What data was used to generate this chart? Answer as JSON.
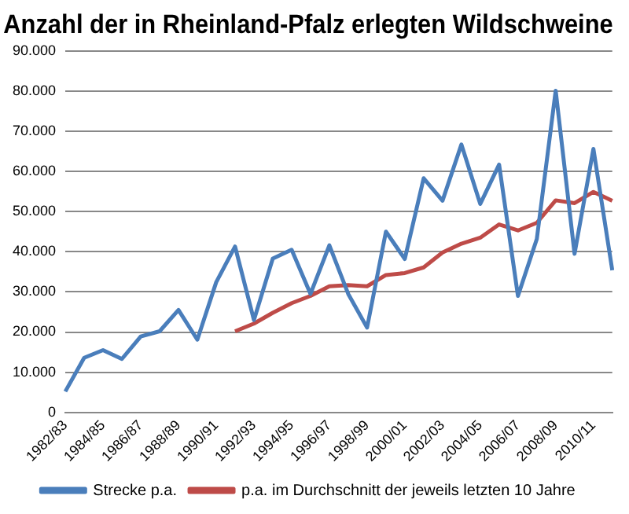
{
  "chart_data": {
    "type": "line",
    "title": "Anzahl der in Rheinland-Pfalz erlegten Wildschweine",
    "categories": [
      "1982/83",
      null,
      "1984/85",
      null,
      "1986/87",
      null,
      "1988/89",
      null,
      "1990/91",
      null,
      "1992/93",
      null,
      "1994/95",
      null,
      "1996/97",
      null,
      "1998/99",
      null,
      "2000/01",
      null,
      "2002/03",
      null,
      "2004/05",
      null,
      "2006/07",
      null,
      "2008/09",
      null,
      "2010/11",
      null
    ],
    "series": [
      {
        "name": "Strecke p.a.",
        "color": "#4a7ebb",
        "values": [
          5200,
          13600,
          15500,
          13300,
          18900,
          20200,
          25500,
          18100,
          32400,
          41300,
          23000,
          38300,
          40500,
          29500,
          41600,
          29500,
          21100,
          45000,
          38200,
          58300,
          52700,
          66700,
          51900,
          61700,
          29000,
          43200,
          80100,
          39500,
          65600,
          35400
        ]
      },
      {
        "name": "p.a. im Durchschnitt der jeweils letzten 10 Jahre",
        "color": "#be4b48",
        "values": [
          null,
          null,
          null,
          null,
          null,
          null,
          null,
          null,
          null,
          20200,
          22100,
          24800,
          27200,
          29000,
          31400,
          31700,
          31400,
          34200,
          34700,
          36100,
          39800,
          42000,
          43500,
          46800,
          45300,
          47200,
          52800,
          52100,
          54900,
          52700
        ]
      }
    ],
    "ylim": [
      0,
      90000
    ],
    "yticks": [
      0,
      {
        "value": 10000,
        "label": "10.000"
      },
      {
        "value": 20000,
        "label": "20.000"
      },
      {
        "value": 30000,
        "label": "30.000"
      },
      {
        "value": 40000,
        "label": "40.000"
      },
      {
        "value": 50000,
        "label": "50.000"
      },
      {
        "value": 60000,
        "label": "60.000"
      },
      {
        "value": 70000,
        "label": "70.000"
      },
      {
        "value": 80000,
        "label": "80.000"
      },
      {
        "value": 90000,
        "label": "90.000"
      }
    ],
    "grid": "y",
    "legend": "bottom",
    "marker": "none",
    "line_style": "solid"
  }
}
